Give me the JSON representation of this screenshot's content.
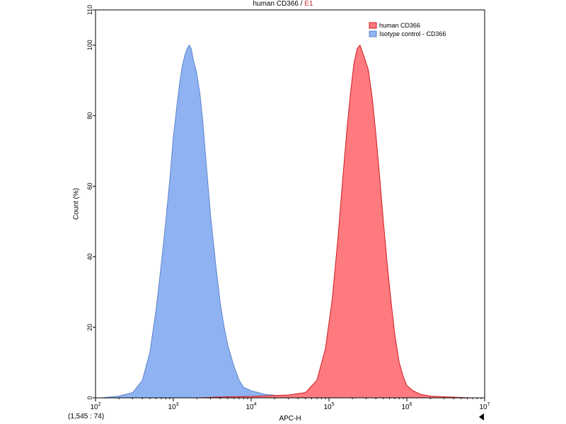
{
  "chart_data": {
    "type": "area",
    "title": "human CD366",
    "title_separator": " / ",
    "title_gate": "E1",
    "xlabel": "APC-H",
    "ylabel": "Count (%)",
    "x_scale": "log",
    "xlim": [
      100,
      10000000
    ],
    "ylim": [
      0,
      110
    ],
    "x_ticks": [
      {
        "base": "10",
        "exp": "2"
      },
      {
        "base": "10",
        "exp": "3"
      },
      {
        "base": "10",
        "exp": "4"
      },
      {
        "base": "10",
        "exp": "5"
      },
      {
        "base": "10",
        "exp": "6"
      },
      {
        "base": "10",
        "exp": "7"
      }
    ],
    "y_ticks": [
      "0",
      "20",
      "40",
      "60",
      "80",
      "100",
      "110"
    ],
    "legend": {
      "position": "top-right"
    },
    "grid": false,
    "series": [
      {
        "name": "human CD366",
        "color": "#ff7a7e",
        "stroke": "#cc1b22",
        "x": [
          2000,
          5000,
          10000,
          30000,
          50000,
          70000,
          90000,
          110000,
          130000,
          150000,
          170000,
          190000,
          210000,
          230000,
          250000,
          280000,
          320000,
          360000,
          400000,
          450000,
          500000,
          560000,
          630000,
          700000,
          800000,
          900000,
          1000000,
          1200000,
          1500000,
          2000000,
          3000000,
          5000000,
          7000000
        ],
        "y": [
          0,
          0.3,
          0.4,
          0.8,
          1.5,
          5,
          14,
          28,
          45,
          62,
          76,
          87,
          95,
          99,
          100,
          97,
          93,
          85,
          75,
          62,
          50,
          38,
          27,
          18,
          10,
          6,
          3.5,
          2,
          1,
          0.5,
          0.3,
          0.1,
          0
        ]
      },
      {
        "name": "Isotype control - CD366",
        "color": "#8fb3f2",
        "stroke": "#5d84c9",
        "x": [
          120,
          200,
          300,
          400,
          500,
          600,
          700,
          800,
          900,
          1000,
          1100,
          1200,
          1300,
          1400,
          1500,
          1600,
          1700,
          1800,
          2000,
          2200,
          2400,
          2700,
          3000,
          3500,
          4000,
          4500,
          5000,
          6000,
          7000,
          8000,
          10000,
          15000,
          25000,
          40000,
          60000
        ],
        "y": [
          0,
          0.5,
          1.5,
          5,
          13,
          25,
          38,
          50,
          62,
          74,
          82,
          89,
          94,
          97,
          99,
          100,
          99,
          96,
          92,
          86,
          78,
          64,
          52,
          38,
          27,
          20,
          15,
          9,
          5,
          3,
          2,
          1,
          0.5,
          0.2,
          0
        ]
      }
    ]
  },
  "readout": "(1,545 : 74)"
}
